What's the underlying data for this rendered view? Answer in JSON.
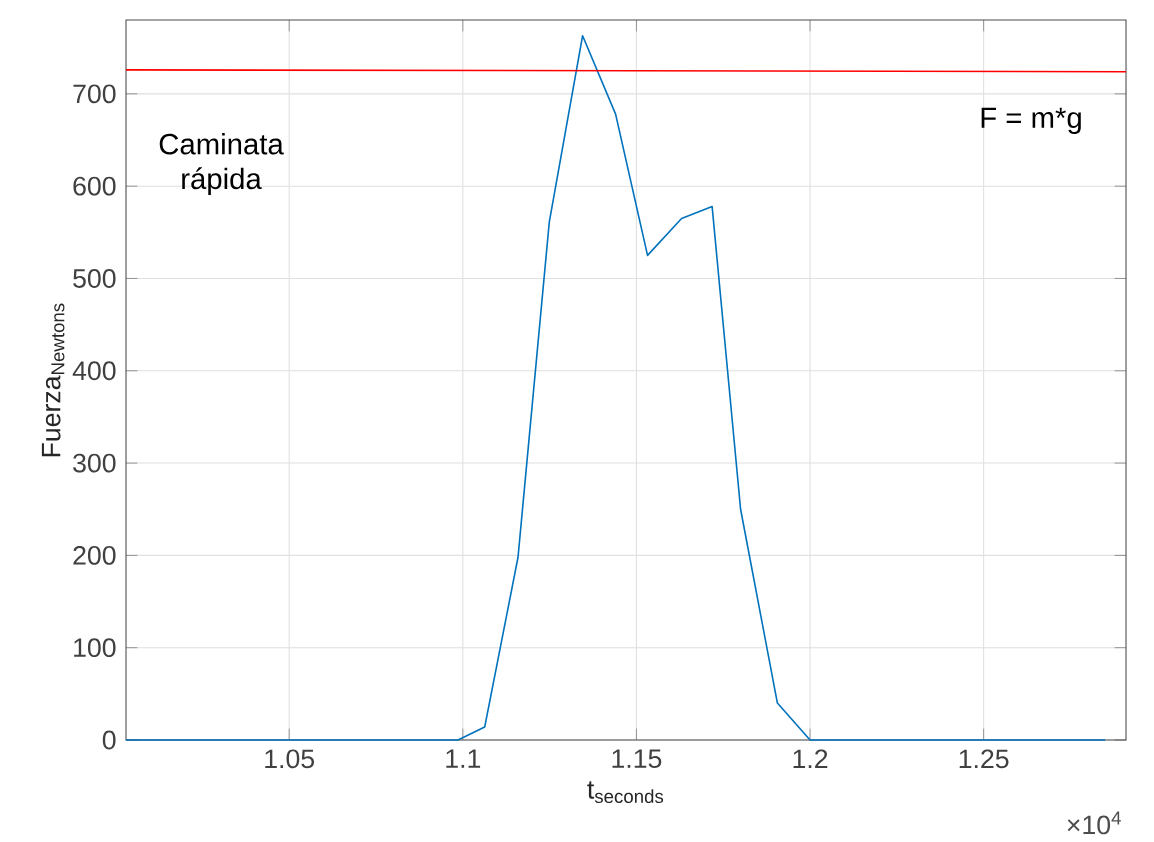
{
  "chart_data": {
    "type": "line",
    "xlabel": "t$_{seconds}$",
    "ylabel": "Fuerza$_{Newtons}$",
    "annotations": [
      "Caminata rápida",
      "F = m*g",
      "×10$^{4}$"
    ],
    "xlim": [
      1.003,
      1.291
    ],
    "ylim": [
      0,
      780
    ],
    "xticks": [
      1.05,
      1.1,
      1.15,
      1.2,
      1.25
    ],
    "yticks": [
      0,
      100,
      200,
      300,
      400,
      500,
      600,
      700
    ],
    "grid": true,
    "series": [
      {
        "color": "#0072bd",
        "x": [
          1.003,
          1.0986,
          1.1063,
          1.1159,
          1.1249,
          1.1345,
          1.144,
          1.1532,
          1.163,
          1.1718,
          1.18,
          1.1906,
          1.2,
          1.285
        ],
        "values": [
          0,
          0,
          14,
          198,
          561,
          763,
          678,
          525,
          565,
          578,
          250,
          40,
          0,
          0
        ]
      },
      {
        "color": "#ff0000",
        "x": [
          1.003,
          1.291
        ],
        "values": [
          726,
          724
        ]
      }
    ]
  }
}
